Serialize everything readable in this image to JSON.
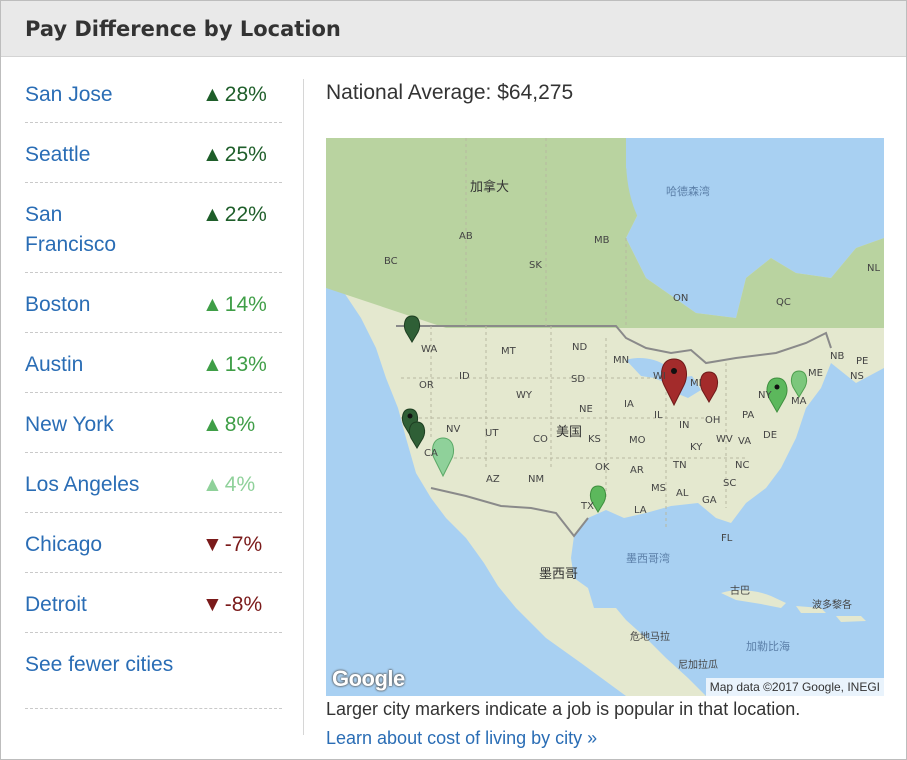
{
  "header": {
    "title": "Pay Difference by Location"
  },
  "cities": [
    {
      "name": "San Jose",
      "arrow": "▲",
      "change": "28%",
      "color": "#1e5e2a"
    },
    {
      "name": "Seattle",
      "arrow": "▲",
      "change": "25%",
      "color": "#1e5e2a"
    },
    {
      "name": "San Francisco",
      "arrow": "▲",
      "change": "22%",
      "color": "#1e5e2a"
    },
    {
      "name": "Boston",
      "arrow": "▲",
      "change": "14%",
      "color": "#3f9e47"
    },
    {
      "name": "Austin",
      "arrow": "▲",
      "change": "13%",
      "color": "#3f9e47"
    },
    {
      "name": "New York",
      "arrow": "▲",
      "change": "8%",
      "color": "#3f9e47"
    },
    {
      "name": "Los Angeles",
      "arrow": "▲",
      "change": "4%",
      "color": "#8fd19a"
    },
    {
      "name": "Chicago",
      "arrow": "▼",
      "change": "-7%",
      "color": "#7a1a1a"
    },
    {
      "name": "Detroit",
      "arrow": "▼",
      "change": "-8%",
      "color": "#7a1a1a"
    }
  ],
  "see_fewer_label": "See fewer cities",
  "national_average": "National Average: $64,275",
  "map": {
    "labels": {
      "canada": "加拿大",
      "hudson_bay": "哈德森湾",
      "usa": "美国",
      "gulf": "墨西哥湾",
      "mexico": "墨西哥",
      "cuba": "古巴",
      "puerto_rico": "波多黎各",
      "guatemala": "危地马拉",
      "nicaragua": "尼加拉瓜",
      "caribbean": "加勒比海",
      "ab": "AB",
      "bc": "BC",
      "sk": "SK",
      "mb": "MB",
      "on": "ON",
      "qc": "QC",
      "nl": "NL",
      "nb": "NB",
      "pe": "PE",
      "ns": "NS",
      "wa": "WA",
      "or": "OR",
      "id": "ID",
      "mt": "MT",
      "nd": "ND",
      "sd": "SD",
      "wy": "WY",
      "nv": "NV",
      "ut": "UT",
      "co": "CO",
      "ne": "NE",
      "ks": "KS",
      "ca": "CA",
      "az": "AZ",
      "nm": "NM",
      "ok": "OK",
      "tx": "TX",
      "mn": "MN",
      "ia": "IA",
      "mo": "MO",
      "ar": "AR",
      "la": "LA",
      "ms": "MS",
      "al": "AL",
      "ga": "GA",
      "fl": "FL",
      "sc": "SC",
      "nc": "NC",
      "tn": "TN",
      "ky": "KY",
      "il": "IL",
      "in": "IN",
      "oh": "OH",
      "mi": "MI",
      "wi": "WI",
      "wv": "WV",
      "va": "VA",
      "pa": "PA",
      "ny": "NY",
      "de": "DE",
      "ma": "MA",
      "me": "ME"
    },
    "google_logo": "Google",
    "attribution": "Map data ©2017 Google, INEGI"
  },
  "caption": "Larger city markers indicate a job is popular in that location.",
  "cost_link": "Learn about cost of living by city »"
}
